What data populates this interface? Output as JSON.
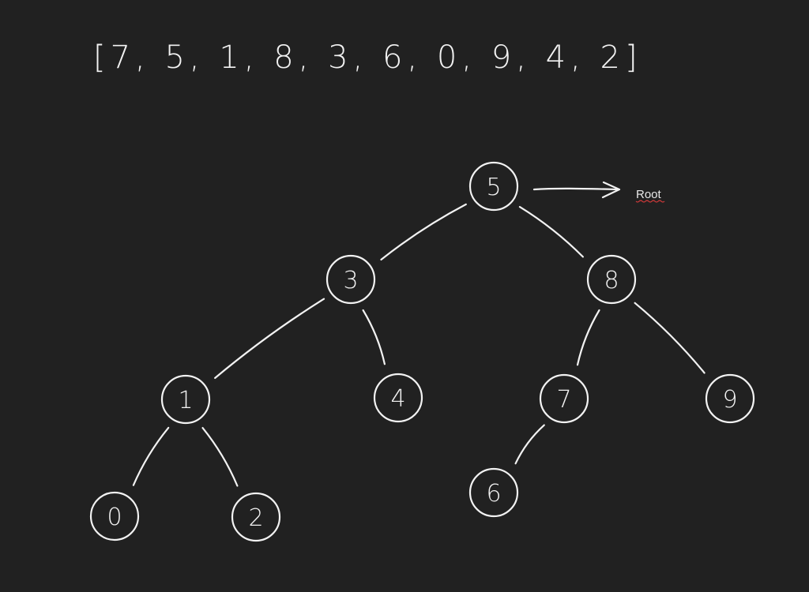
{
  "array": {
    "text": "[7, 5, 1, 8, 3, 6, 0, 9, 4, 2]"
  },
  "tree": {
    "nodes": [
      {
        "id": "n5",
        "label": "5"
      },
      {
        "id": "n3",
        "label": "3"
      },
      {
        "id": "n8",
        "label": "8"
      },
      {
        "id": "n1",
        "label": "1"
      },
      {
        "id": "n4",
        "label": "4"
      },
      {
        "id": "n7",
        "label": "7"
      },
      {
        "id": "n9",
        "label": "9"
      },
      {
        "id": "n0",
        "label": "0"
      },
      {
        "id": "n2",
        "label": "2"
      },
      {
        "id": "n6",
        "label": "6"
      }
    ],
    "edges": [
      [
        "n5",
        "n3"
      ],
      [
        "n5",
        "n8"
      ],
      [
        "n3",
        "n1"
      ],
      [
        "n3",
        "n4"
      ],
      [
        "n8",
        "n7"
      ],
      [
        "n8",
        "n9"
      ],
      [
        "n1",
        "n0"
      ],
      [
        "n1",
        "n2"
      ],
      [
        "n7",
        "n6"
      ]
    ]
  },
  "root_annotation": {
    "label": "Root"
  },
  "colors": {
    "background": "#212121",
    "ink": "#f2f2f2",
    "spellcheck": "#d23a3a"
  }
}
